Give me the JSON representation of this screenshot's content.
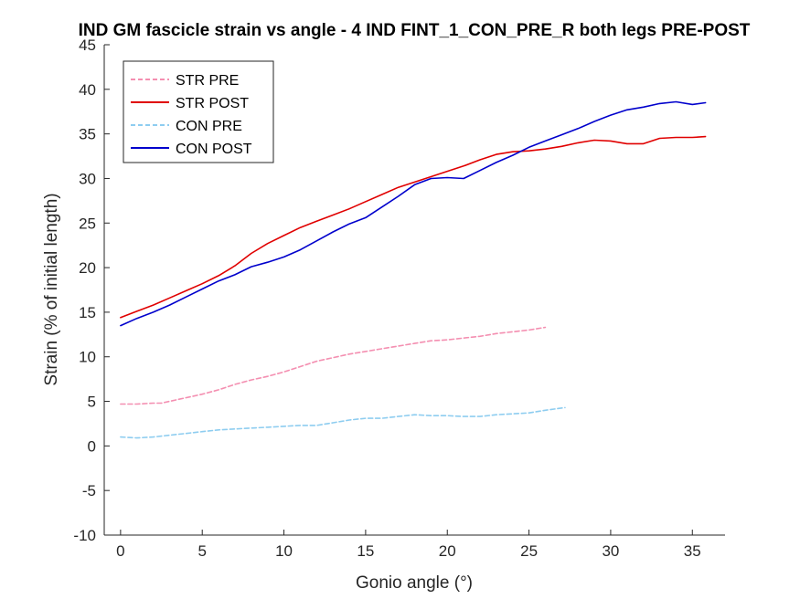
{
  "chart_data": {
    "type": "line",
    "title": "IND GM fascicle strain vs angle - 4 IND FINT_1_CON_PRE_R both legs PRE-POST",
    "xlabel": "Gonio angle (°)",
    "ylabel": "Strain (% of initial length)",
    "xlim": [
      -1,
      37
    ],
    "ylim": [
      -10,
      45
    ],
    "xticks": [
      0,
      5,
      10,
      15,
      20,
      25,
      30,
      35
    ],
    "yticks": [
      -10,
      -5,
      0,
      5,
      10,
      15,
      20,
      25,
      30,
      35,
      40,
      45
    ],
    "grid": false,
    "legend_position": "top-left",
    "series": [
      {
        "name": "STR PRE",
        "color": "#f48fb1",
        "dash": true,
        "x": [
          0,
          1,
          2,
          2.5,
          3,
          4,
          5,
          6,
          7,
          8,
          9,
          10,
          11,
          12,
          13,
          14,
          15,
          16,
          17,
          18,
          19,
          20,
          21,
          22,
          23,
          24,
          25,
          26
        ],
        "y": [
          4.7,
          4.7,
          4.8,
          4.8,
          5.0,
          5.4,
          5.8,
          6.3,
          6.9,
          7.4,
          7.8,
          8.3,
          8.9,
          9.5,
          9.9,
          10.3,
          10.6,
          10.9,
          11.2,
          11.5,
          11.8,
          11.9,
          12.1,
          12.3,
          12.6,
          12.8,
          13.0,
          13.3
        ]
      },
      {
        "name": "STR POST",
        "color": "#e00000",
        "dash": false,
        "x": [
          0,
          1,
          2,
          3,
          4,
          5,
          6,
          7,
          8,
          9,
          10,
          11,
          12,
          13,
          14,
          15,
          16,
          17,
          18,
          19,
          20,
          21,
          22,
          23,
          24,
          25,
          26,
          27,
          28,
          29,
          30,
          31,
          32,
          33,
          34,
          35,
          35.8
        ],
        "y": [
          14.4,
          15.1,
          15.8,
          16.6,
          17.4,
          18.2,
          19.1,
          20.2,
          21.6,
          22.7,
          23.6,
          24.5,
          25.2,
          25.9,
          26.6,
          27.4,
          28.2,
          29.0,
          29.6,
          30.2,
          30.8,
          31.4,
          32.1,
          32.7,
          33.0,
          33.1,
          33.3,
          33.6,
          34.0,
          34.3,
          34.2,
          33.9,
          33.9,
          34.5,
          34.6,
          34.6,
          34.7
        ]
      },
      {
        "name": "CON PRE",
        "color": "#8ecdf0",
        "dash": true,
        "x": [
          0,
          1,
          2,
          3,
          4,
          5,
          6,
          7,
          8,
          9,
          10,
          11,
          12,
          13,
          14,
          15,
          16,
          17,
          18,
          19,
          20,
          21,
          22,
          23,
          24,
          25,
          26,
          27.2
        ],
        "y": [
          1.0,
          0.9,
          1.0,
          1.2,
          1.4,
          1.6,
          1.8,
          1.9,
          2.0,
          2.1,
          2.2,
          2.3,
          2.3,
          2.6,
          2.9,
          3.1,
          3.1,
          3.3,
          3.5,
          3.4,
          3.4,
          3.3,
          3.3,
          3.5,
          3.6,
          3.7,
          4.0,
          4.3
        ]
      },
      {
        "name": "CON POST",
        "color": "#0000cc",
        "dash": false,
        "x": [
          0,
          1,
          2,
          3,
          4,
          5,
          6,
          7,
          8,
          9,
          10,
          11,
          12,
          13,
          14,
          15,
          16,
          17,
          18,
          19,
          20,
          21,
          22,
          23,
          24,
          25,
          26,
          27,
          28,
          29,
          30,
          31,
          32,
          33,
          34,
          35,
          35.8
        ],
        "y": [
          13.5,
          14.3,
          15.0,
          15.8,
          16.7,
          17.6,
          18.5,
          19.2,
          20.1,
          20.6,
          21.2,
          22.0,
          23.0,
          24.0,
          24.9,
          25.6,
          26.8,
          28.0,
          29.3,
          30.0,
          30.1,
          30.0,
          30.9,
          31.8,
          32.6,
          33.5,
          34.2,
          34.9,
          35.6,
          36.4,
          37.1,
          37.7,
          38.0,
          38.4,
          38.6,
          38.3,
          38.5
        ]
      }
    ]
  }
}
